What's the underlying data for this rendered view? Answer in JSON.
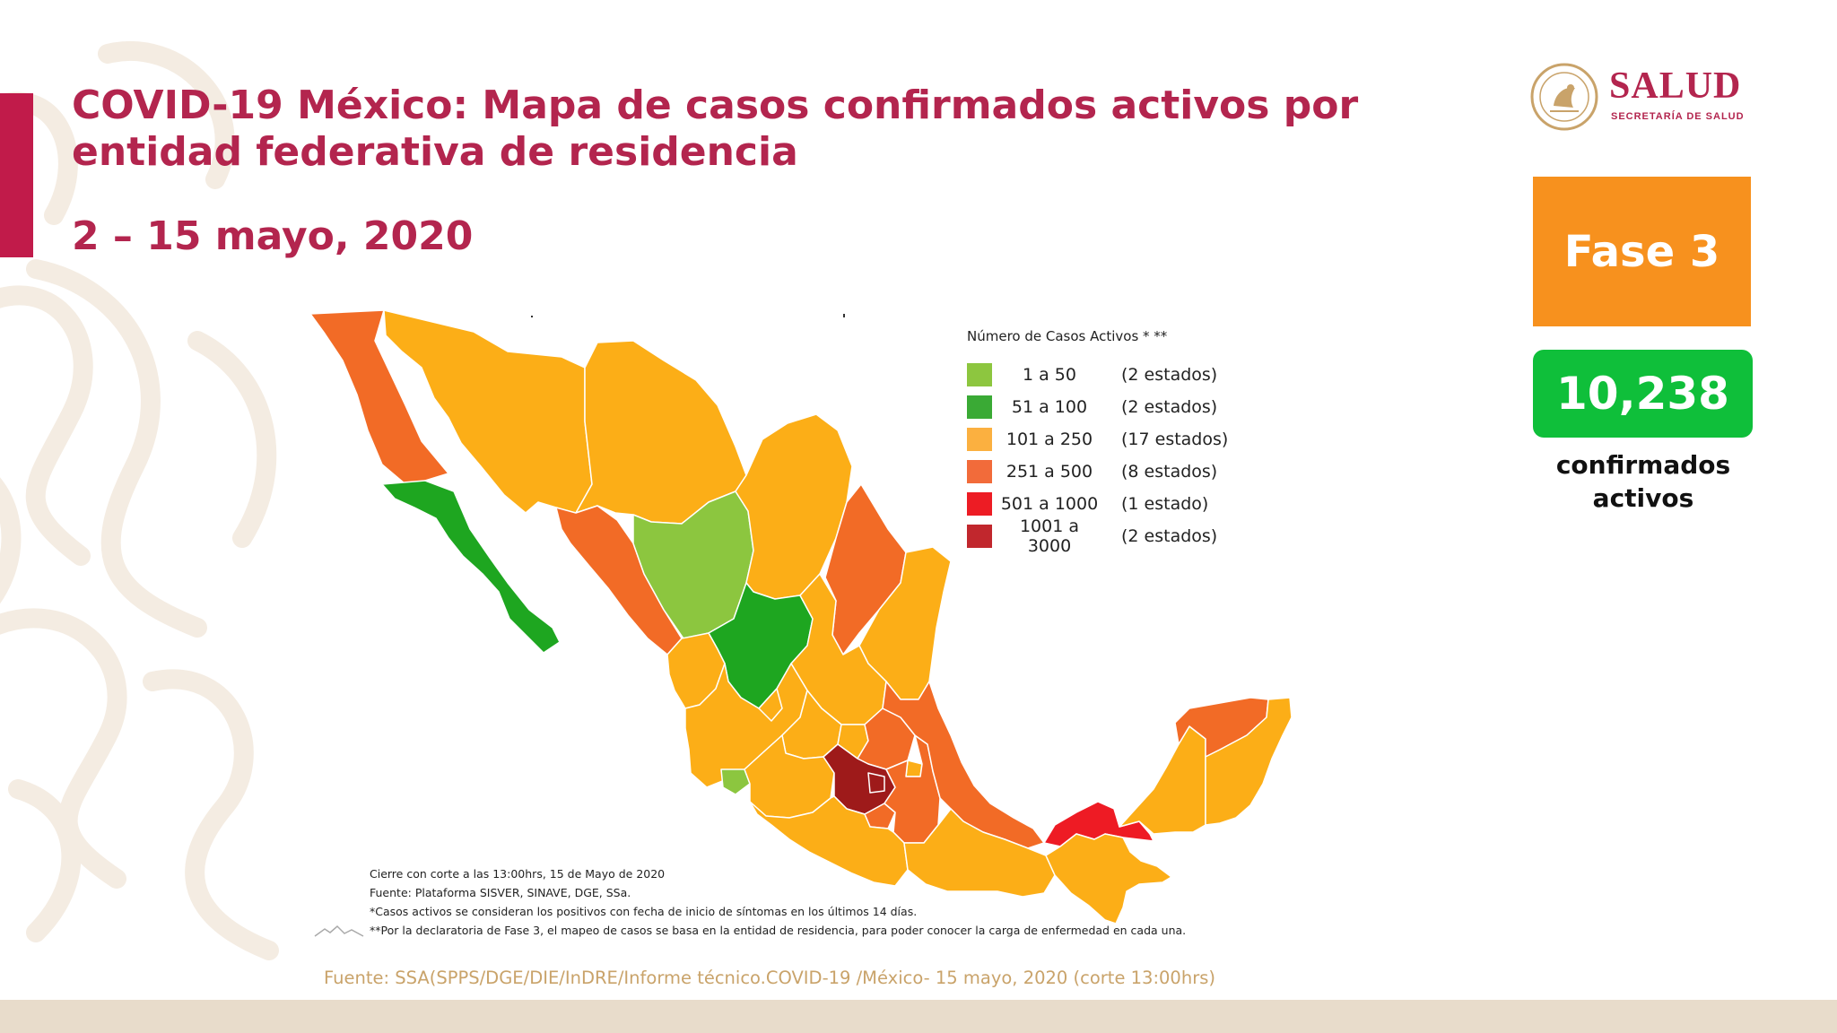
{
  "header": {
    "title_line1": "COVID-19 México: Mapa de casos confirmados activos por",
    "title_line2": "entidad federativa de residencia",
    "date_range": "2 – 15 mayo, 2020"
  },
  "logo": {
    "name": "SALUD",
    "subtitle": "SECRETARÍA DE SALUD",
    "seal_icon": "mexico-coat-of-arms-seal"
  },
  "phase": {
    "label": "Fase 3",
    "color": "#f7911e"
  },
  "active_cases": {
    "value": "10,238",
    "label_line1": "confirmados",
    "label_line2": "activos",
    "color": "#0fbf3a"
  },
  "legend": {
    "title": "Número de Casos Activos * **",
    "items": [
      {
        "range": "1 a 50",
        "count": "(2 estados)",
        "color": "#8dc63f"
      },
      {
        "range": "51 a 100",
        "count": "(2 estados)",
        "color": "#3aaa35"
      },
      {
        "range": "101 a 250",
        "count": "(17 estados)",
        "color": "#fbb040"
      },
      {
        "range": "251 a 500",
        "count": "(8 estados)",
        "color": "#f26b3a"
      },
      {
        "range": "501 a 1000",
        "count": "(1 estado)",
        "color": "#ed1c24"
      },
      {
        "range": "1001 a 3000",
        "count": "(2 estados)",
        "color": "#c1272d"
      }
    ]
  },
  "notes": {
    "line1": "Cierre con corte a las 13:00hrs, 15 de Mayo de 2020",
    "line2": "Fuente: Plataforma SISVER, SINAVE, DGE, SSa.",
    "line3": "*Casos activos se consideran los positivos con fecha de inicio de síntomas en los últimos 14 días.",
    "line4": "**Por la declaratoria de Fase 3, el mapeo de casos se basa en la entidad de residencia, para poder conocer la carga de enfermedad en cada una."
  },
  "source": "Fuente: SSA(SPPS/DGE/DIE/InDRE/Informe técnico.COVID-19 /México- 15 mayo, 2020 (corte 13:00hrs)",
  "map_colors": {
    "range_101_250": "#fcae17",
    "range_251_500": "#f26b26",
    "range_1_50": "#8cc63f",
    "range_51_100": "#1ea620",
    "range_501_1000": "#ee1b24",
    "range_1001_3000": "#9e1a1a"
  }
}
